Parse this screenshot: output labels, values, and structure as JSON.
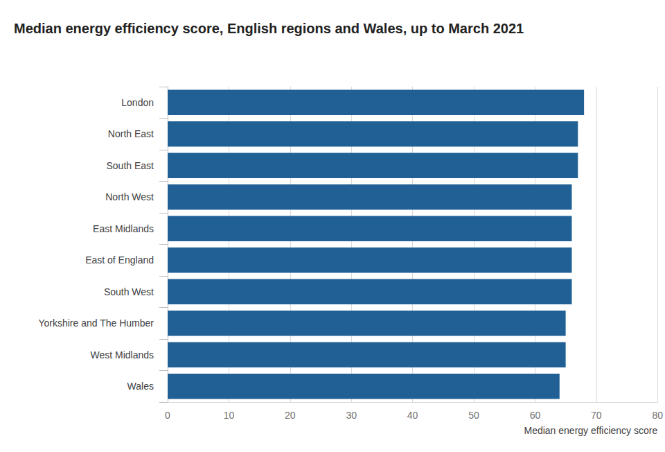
{
  "chart_data": {
    "type": "bar",
    "title": "Median energy efficiency score, English regions and Wales, up to March 2021",
    "x_label": "Median energy efficiency score",
    "orientation": "horizontal",
    "categories": [
      "London",
      "North East",
      "South East",
      "North West",
      "East Midlands",
      "East of England",
      "South West",
      "Yorkshire and The Humber",
      "West Midlands",
      "Wales"
    ],
    "values": [
      68,
      67,
      67,
      66,
      66,
      66,
      66,
      65,
      65,
      64
    ],
    "color": "#206095",
    "xlim": [
      0,
      80
    ],
    "xticks": [
      0,
      10,
      20,
      30,
      40,
      50,
      60,
      70,
      80
    ],
    "grid": true
  }
}
